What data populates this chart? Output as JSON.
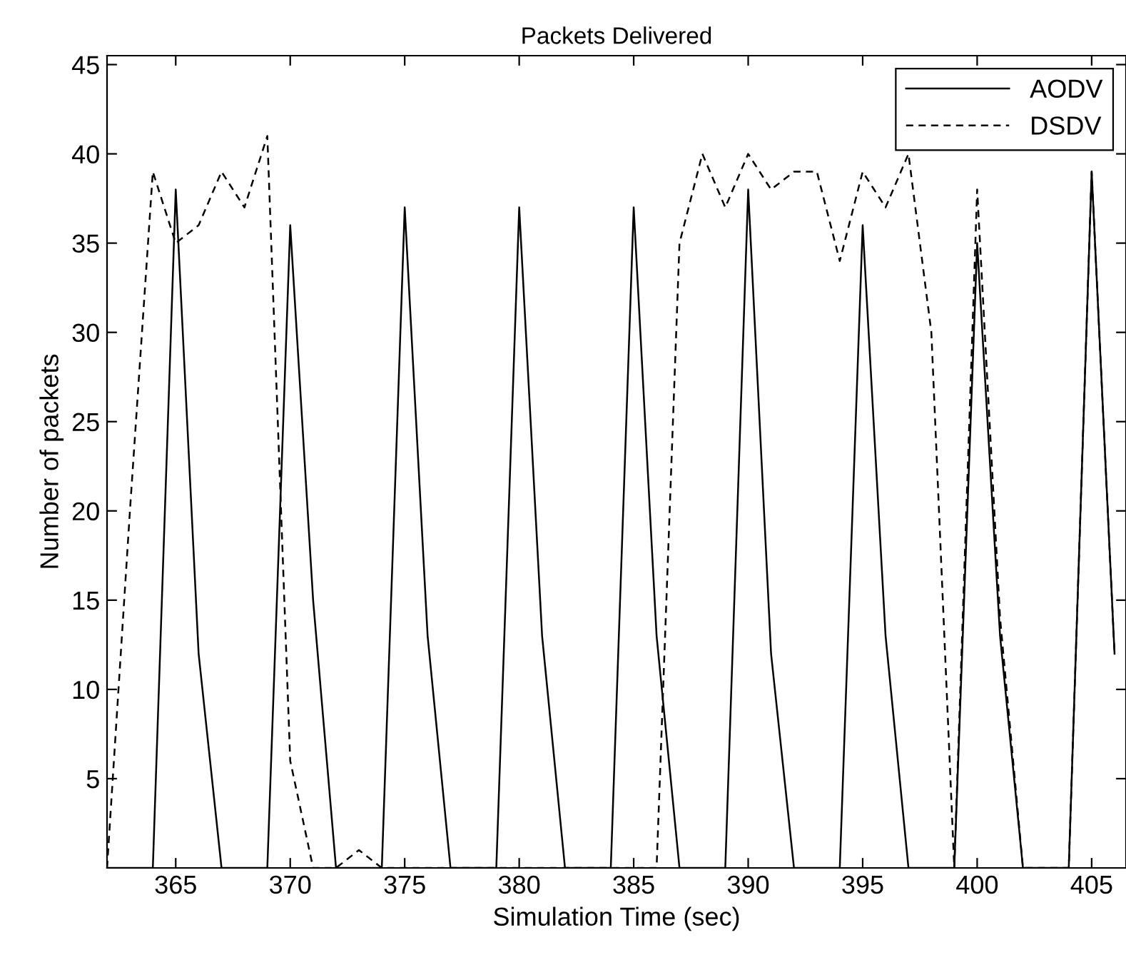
{
  "chart_data": {
    "type": "line",
    "title": "Packets Delivered",
    "xlabel": "Simulation Time (sec)",
    "ylabel": "Number of packets",
    "x": [
      362,
      363,
      364,
      365,
      366,
      367,
      368,
      369,
      370,
      371,
      372,
      373,
      374,
      375,
      376,
      377,
      378,
      379,
      380,
      381,
      382,
      383,
      384,
      385,
      386,
      387,
      388,
      389,
      390,
      391,
      392,
      393,
      394,
      395,
      396,
      397,
      398,
      399,
      400,
      401,
      402,
      403,
      404,
      405,
      406
    ],
    "series": [
      {
        "name": "AODV",
        "color": "#000000",
        "line_style": "solid",
        "values": [
          0,
          0,
          0,
          38,
          12,
          0,
          0,
          0,
          36,
          15,
          0,
          0,
          0,
          37,
          13,
          0,
          0,
          0,
          37,
          13,
          0,
          0,
          0,
          37,
          13,
          0,
          0,
          0,
          38,
          12,
          0,
          0,
          0,
          36,
          13,
          0,
          0,
          0,
          35,
          13,
          0,
          0,
          0,
          39,
          12
        ]
      },
      {
        "name": "DSDV",
        "color": "#000000",
        "line_style": "dashed",
        "values": [
          0,
          20,
          39,
          35,
          36,
          39,
          37,
          41,
          6,
          0,
          0,
          1,
          0,
          0,
          0,
          0,
          0,
          0,
          0,
          0,
          0,
          0,
          0,
          0,
          0,
          35,
          40,
          37,
          40,
          38,
          39,
          39,
          34,
          39,
          37,
          40,
          30,
          0,
          38,
          14,
          0,
          0,
          0,
          39,
          12
        ]
      }
    ],
    "xlim": [
      362,
      406.5
    ],
    "ylim": [
      0,
      45.5
    ],
    "xticks": [
      365,
      370,
      375,
      380,
      385,
      390,
      395,
      400,
      405
    ],
    "yticks": [
      5,
      10,
      15,
      20,
      25,
      30,
      35,
      40,
      45
    ],
    "grid": false,
    "legend": "top right",
    "marker": "none"
  }
}
